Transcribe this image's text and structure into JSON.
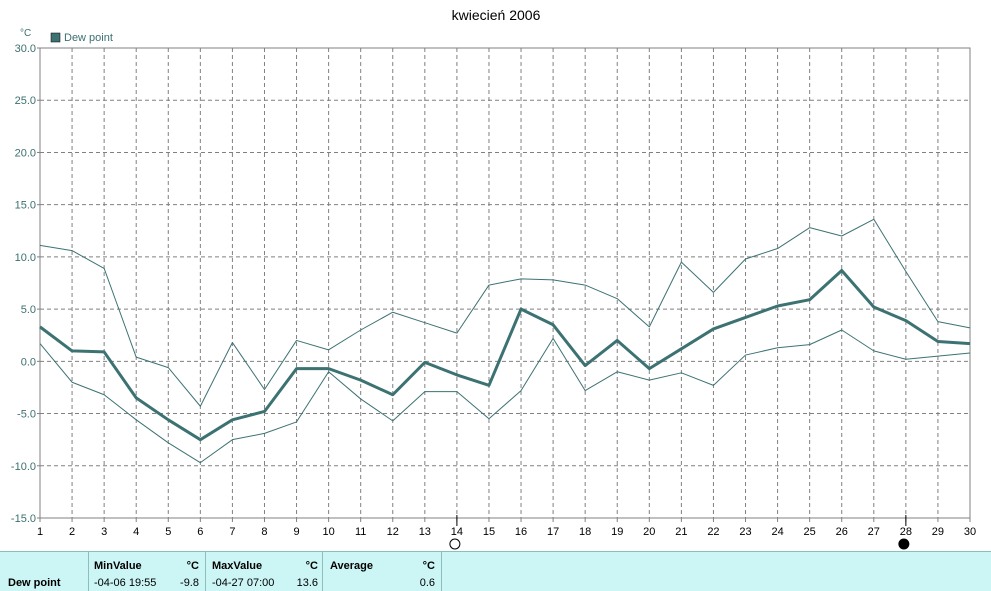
{
  "chart_data": {
    "type": "line",
    "title": "kwiecień 2006",
    "ylabel": "°C",
    "xlabel": "",
    "ylim": [
      -15,
      30
    ],
    "xlim": [
      1,
      30
    ],
    "yticks": [
      "30.0",
      "25.0",
      "20.0",
      "15.0",
      "10.0",
      "5.0",
      "0.0",
      "-5.0",
      "-10.0",
      "-15.0"
    ],
    "ytick_values": [
      30,
      25,
      20,
      15,
      10,
      5,
      0,
      -5,
      -10,
      -15
    ],
    "x": [
      1,
      2,
      3,
      4,
      5,
      6,
      7,
      8,
      9,
      10,
      11,
      12,
      13,
      14,
      15,
      16,
      17,
      18,
      19,
      20,
      21,
      22,
      23,
      24,
      25,
      26,
      27,
      28,
      29,
      30
    ],
    "grid": true,
    "legend": "top-left",
    "series": [
      {
        "name": "Dew point",
        "role": "average",
        "values": [
          3.3,
          1.0,
          0.9,
          -3.5,
          -5.6,
          -7.5,
          -5.6,
          -4.8,
          -0.7,
          -0.7,
          -1.8,
          -3.2,
          -0.1,
          -1.3,
          -2.3,
          5.0,
          3.5,
          -0.4,
          2.0,
          -0.7,
          1.2,
          3.1,
          4.2,
          5.3,
          5.9,
          8.7,
          5.2,
          3.9,
          1.9,
          1.7
        ]
      },
      {
        "role": "max",
        "values": [
          11.1,
          10.6,
          8.9,
          0.4,
          -0.6,
          -4.3,
          1.8,
          -2.7,
          2.0,
          1.1,
          3.0,
          4.7,
          3.7,
          2.7,
          7.3,
          7.9,
          7.8,
          7.3,
          6.0,
          3.3,
          9.5,
          6.6,
          9.8,
          10.8,
          12.8,
          12.0,
          13.6,
          8.6,
          3.8,
          3.2
        ]
      },
      {
        "role": "min",
        "values": [
          1.7,
          -2.0,
          -3.2,
          -5.6,
          -7.8,
          -9.7,
          -7.5,
          -6.9,
          -5.8,
          -1.0,
          -3.6,
          -5.7,
          -2.9,
          -2.9,
          -5.5,
          -2.8,
          2.2,
          -2.8,
          -1.0,
          -1.8,
          -1.1,
          -2.3,
          0.6,
          1.3,
          1.6,
          3.0,
          1.0,
          0.2,
          0.5,
          0.8
        ]
      }
    ],
    "colors": {
      "main": "#3d7272",
      "thin": "#3d7272",
      "grid": "#808080",
      "axis": "#808080"
    }
  },
  "markers": [
    {
      "day": 14,
      "icon": "full-moon-icon"
    },
    {
      "day": 28,
      "icon": "new-moon-icon"
    }
  ],
  "stats": {
    "row_label": "Dew point",
    "min": {
      "header": "MinValue",
      "unit": "°C",
      "date": "-04-06  19:55",
      "value": "-9.8"
    },
    "max": {
      "header": "MaxValue",
      "unit": "°C",
      "date": "-04-27  07:00",
      "value": "13.6"
    },
    "avg": {
      "header": "Average",
      "unit": "°C",
      "value": "0.6"
    }
  }
}
